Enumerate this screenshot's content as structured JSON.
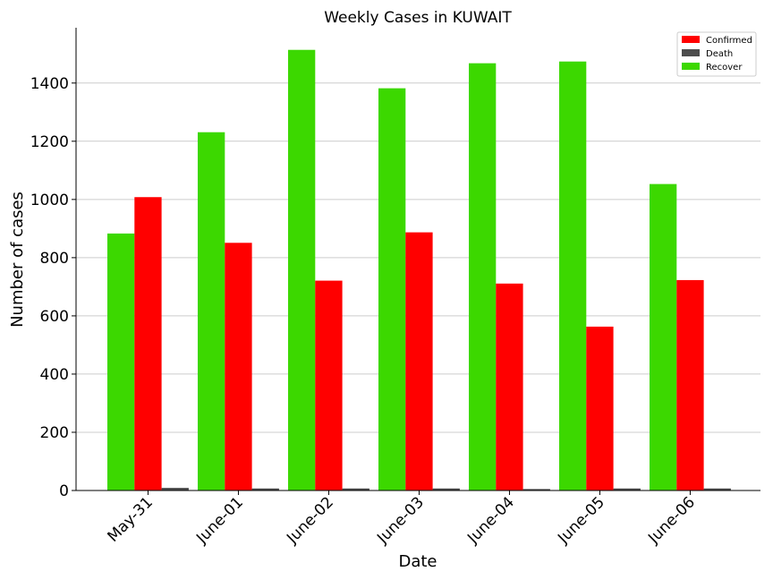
{
  "chart_data": {
    "type": "bar",
    "title": "Weekly Cases in KUWAIT",
    "xlabel": "Date",
    "ylabel": "Number of cases",
    "categories": [
      "May-31",
      "June-01",
      "June-02",
      "June-03",
      "June-04",
      "June-05",
      "June-06"
    ],
    "series": [
      {
        "name": "Recover",
        "color": "#3cd800",
        "values": [
          883,
          1231,
          1514,
          1382,
          1468,
          1474,
          1053
        ]
      },
      {
        "name": "Confirmed",
        "color": "#ff0000",
        "values": [
          1008,
          851,
          721,
          887,
          711,
          563,
          723
        ]
      },
      {
        "name": "Death",
        "color": "#4d4d4d",
        "values": [
          9,
          7,
          7,
          7,
          5,
          7,
          7
        ]
      }
    ],
    "legend_order": [
      "Confirmed",
      "Death",
      "Recover"
    ],
    "legend_position": "top-right",
    "ylim": [
      0,
      1590
    ],
    "yticks": [
      0,
      200,
      400,
      600,
      800,
      1000,
      1200,
      1400
    ],
    "grid": "horizontal"
  }
}
